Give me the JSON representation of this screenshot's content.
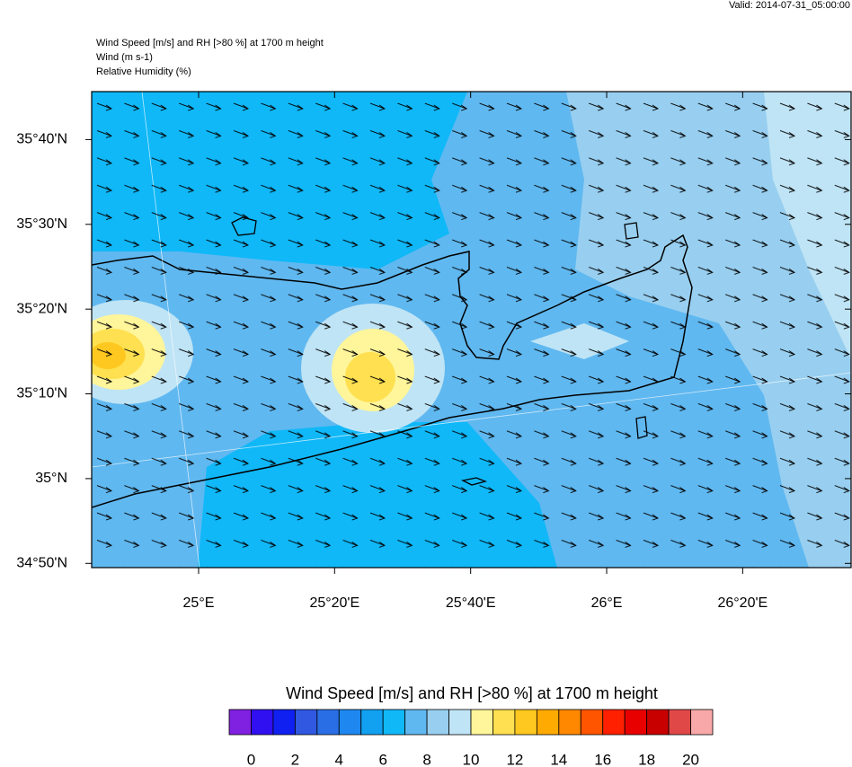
{
  "valid": "Valid: 2014-07-31_05:00:00",
  "header": {
    "title": "Wind Speed [m/s] and RH [>80 %] at 1700 m height",
    "wind": "Wind   (m s-1)",
    "rh": "Relative Humidity   (%)"
  },
  "map": {
    "xlim": [
      24.738,
      26.599
    ],
    "ylim": [
      34.825,
      35.761
    ],
    "yticks": [
      {
        "value": 35.6667,
        "label": "35°40'N"
      },
      {
        "value": 35.5,
        "label": "35°30'N"
      },
      {
        "value": 35.3333,
        "label": "35°20'N"
      },
      {
        "value": 35.1667,
        "label": "35°10'N"
      },
      {
        "value": 35,
        "label": "35°N"
      },
      {
        "value": 34.8333,
        "label": "34°50'N"
      }
    ],
    "xticks": [
      {
        "value": 25,
        "label": "25°E"
      },
      {
        "value": 25.3333,
        "label": "25°20'E"
      },
      {
        "value": 25.6667,
        "label": "25°40'E"
      },
      {
        "value": 26,
        "label": "26°E"
      },
      {
        "value": 26.3333,
        "label": "26°20'E"
      }
    ]
  },
  "colorbar": {
    "title": "Wind Speed [m/s] and RH [>80 %] at 1700 m height",
    "lim": [
      -1,
      21
    ],
    "colors": [
      "#8020e0",
      "#3010f0",
      "#1020f0",
      "#3058e0",
      "#2a6ee6",
      "#1e88f0",
      "#12a0f0",
      "#10b8f8",
      "#60b8f0",
      "#98cff0",
      "#bfe4f5",
      "#fff59a",
      "#ffe050",
      "#ffc820",
      "#ffaa00",
      "#ff8800",
      "#ff5500",
      "#ff2000",
      "#e80000",
      "#c80000",
      "#e04848",
      "#f8a8a8"
    ],
    "ticks": [
      0,
      2,
      4,
      6,
      8,
      10,
      12,
      14,
      16,
      18,
      20
    ]
  }
}
